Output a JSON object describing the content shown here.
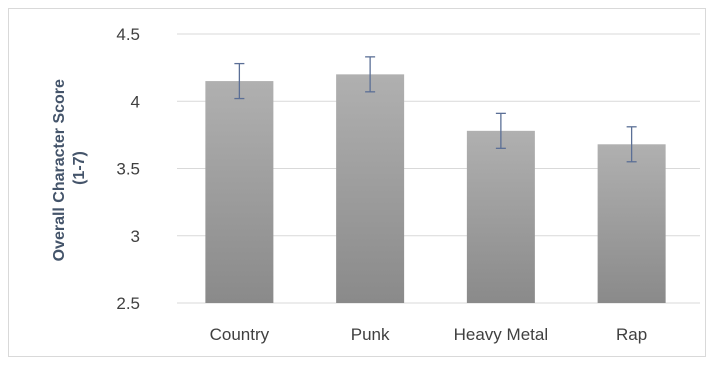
{
  "chart_data": {
    "type": "bar",
    "title": "",
    "xlabel": "",
    "ylabel_lines": [
      "Overall Character Score",
      "(1-7)"
    ],
    "categories": [
      "Country",
      "Punk",
      "Heavy Metal",
      "Rap"
    ],
    "values": [
      4.15,
      4.2,
      3.78,
      3.68
    ],
    "error": [
      0.13,
      0.13,
      0.13,
      0.13
    ],
    "ylim": [
      2.5,
      4.5
    ],
    "yticks": [
      2.5,
      3,
      3.5,
      4,
      4.5
    ],
    "ytick_labels": [
      "2.5",
      "3",
      "3.5",
      "4",
      "4.5"
    ],
    "grid": true,
    "legend": "none",
    "colors": {
      "bar_top": "#b0b0b0",
      "bar_bottom": "#8a8a8a",
      "error_bar": "#5b6f96",
      "grid": "#d9d9d9",
      "axis_title": "#44546a"
    }
  }
}
